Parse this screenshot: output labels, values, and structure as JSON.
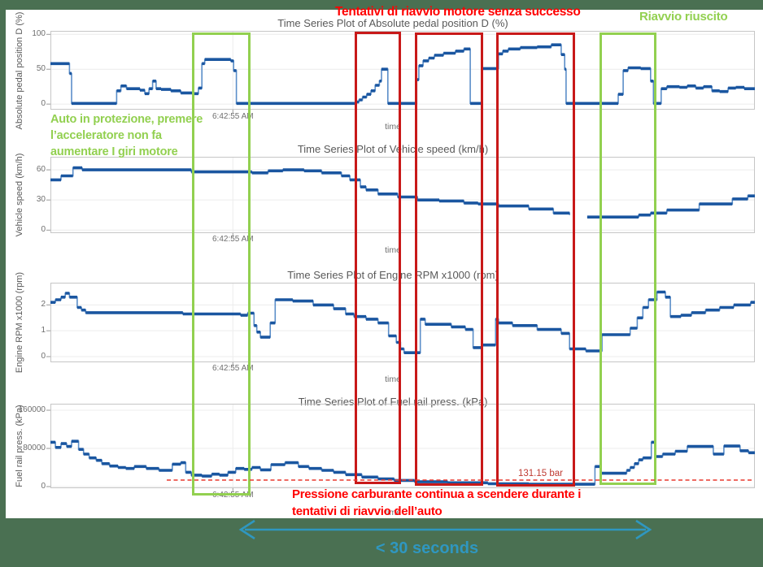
{
  "slide": {
    "background_color": "#4a7052",
    "panel_color": "#ffffff"
  },
  "annotations": {
    "top_red_label": "Tentativi di riavvio motore senza successo",
    "top_green_label": "Riavvio riuscito",
    "left_green_lines": [
      "Auto in protezione, premere",
      "l’acceleratore non  fa",
      "aumentare I giri motore"
    ],
    "bottom_red_lines": [
      "Pressione carburante continua a scendere durante i",
      "tentativi di riavvio dell’auto"
    ],
    "threshold_label": "131.15 bar",
    "duration_label": "< 30 seconds",
    "colors": {
      "red_text": "#ff0000",
      "green": "#92d050",
      "red_box": "#c81919",
      "threshold_text": "#bf3b32",
      "threshold_line": "#e8392f",
      "arrow_blue": "#2f97c0",
      "line_blue": "#1a56a0",
      "line_blue_light": "#5b8ec9"
    },
    "highlights": [
      {
        "name": "protection-phase",
        "color": "#92d050"
      },
      {
        "name": "restart-attempt-1",
        "color": "#c81919"
      },
      {
        "name": "restart-attempt-2",
        "color": "#c81919"
      },
      {
        "name": "restart-attempt-3",
        "color": "#c81919"
      },
      {
        "name": "successful-restart",
        "color": "#92d050"
      }
    ]
  },
  "chart_data": [
    {
      "type": "line",
      "title": "Time Series Plot of Absolute pedal position D (%)",
      "ylabel": "Absolute pedal position D (%)",
      "xlabel": "time",
      "x_axis": {
        "tick_label": "6:42:55 AM",
        "tick_position_pct": 25.9,
        "units": "percent_of_time_window"
      },
      "ylim": [
        -8,
        105
      ],
      "yticks": [
        0,
        50,
        100
      ],
      "grid": true,
      "series": [
        {
          "name": "Absolute pedal position D (%)",
          "draw": "step",
          "points": [
            [
              0,
              58
            ],
            [
              2.7,
              44
            ],
            [
              3,
              1
            ],
            [
              9.4,
              19
            ],
            [
              10,
              26
            ],
            [
              10.8,
              22
            ],
            [
              12.7,
              20
            ],
            [
              13.4,
              15
            ],
            [
              14,
              22
            ],
            [
              14.5,
              33
            ],
            [
              15,
              22
            ],
            [
              15.7,
              21
            ],
            [
              17.1,
              19
            ],
            [
              18.5,
              16
            ],
            [
              20.2,
              15
            ],
            [
              21,
              23
            ],
            [
              21.5,
              58
            ],
            [
              21.9,
              64
            ],
            [
              25.6,
              62
            ],
            [
              26,
              48
            ],
            [
              26.4,
              1
            ],
            [
              43.3,
              3
            ],
            [
              43.8,
              6
            ],
            [
              44.3,
              10
            ],
            [
              44.9,
              14
            ],
            [
              45.5,
              19
            ],
            [
              46.1,
              27
            ],
            [
              46.7,
              33
            ],
            [
              47,
              50
            ],
            [
              47.9,
              1
            ],
            [
              52,
              35
            ],
            [
              52.3,
              55
            ],
            [
              52.9,
              62
            ],
            [
              53.7,
              66
            ],
            [
              54.5,
              70
            ],
            [
              55.8,
              73
            ],
            [
              57.5,
              76
            ],
            [
              58.7,
              79
            ],
            [
              59.6,
              1
            ],
            [
              61.2,
              51
            ],
            [
              63.6,
              72
            ],
            [
              64.2,
              76
            ],
            [
              65,
              79
            ],
            [
              66.7,
              81
            ],
            [
              69.1,
              82
            ],
            [
              71.1,
              85
            ],
            [
              72.5,
              71
            ],
            [
              73,
              50
            ],
            [
              73.2,
              1
            ],
            [
              80.6,
              14
            ],
            [
              81.3,
              48
            ],
            [
              82,
              52
            ],
            [
              83.8,
              51
            ],
            [
              85.2,
              33
            ],
            [
              85.6,
              1
            ],
            [
              86.7,
              22
            ],
            [
              87.5,
              25
            ],
            [
              89.3,
              24
            ],
            [
              90.4,
              26
            ],
            [
              91.6,
              23
            ],
            [
              92.7,
              25
            ],
            [
              93.9,
              19
            ],
            [
              95,
              18
            ],
            [
              96.2,
              23
            ],
            [
              97.3,
              24
            ],
            [
              98.5,
              22
            ]
          ]
        }
      ]
    },
    {
      "type": "line",
      "title": "Time Series Plot of Vehicle speed (km/h)",
      "ylabel": "Vehicle speed (km/h)",
      "xlabel": "time",
      "x_axis": {
        "tick_label": "6:42:55 AM",
        "tick_position_pct": 25.9,
        "units": "percent_of_time_window"
      },
      "ylim": [
        -3,
        73
      ],
      "yticks": [
        0,
        30,
        60
      ],
      "grid": true,
      "series": [
        {
          "name": "Vehicle speed (km/h)",
          "draw": "step",
          "points": [
            [
              0,
              50
            ],
            [
              1.5,
              54
            ],
            [
              3.2,
              62
            ],
            [
              4.5,
              60
            ],
            [
              6,
              60
            ],
            [
              20,
              58
            ],
            [
              28.6,
              57
            ],
            [
              30.9,
              59
            ],
            [
              33,
              60
            ],
            [
              36,
              59
            ],
            [
              38.5,
              57
            ],
            [
              41.3,
              54
            ],
            [
              42.5,
              50
            ],
            [
              44,
              43
            ],
            [
              44.8,
              40
            ],
            [
              46.5,
              36
            ],
            [
              49.3,
              33
            ],
            [
              52.1,
              30
            ],
            [
              55.2,
              29
            ],
            [
              58.7,
              27
            ],
            [
              60.7,
              26
            ],
            [
              63.6,
              24
            ],
            [
              67.9,
              21
            ],
            [
              71.4,
              17
            ],
            [
              73.7,
              15
            ],
            [
              74.6,
              null
            ],
            [
              76.2,
              13
            ],
            [
              81.8,
              13
            ],
            [
              83.5,
              15
            ],
            [
              85.2,
              17
            ],
            [
              87.5,
              20
            ],
            [
              92.1,
              26
            ],
            [
              96.8,
              31
            ],
            [
              99,
              34
            ]
          ]
        }
      ]
    },
    {
      "type": "line",
      "title": "Time Series Plot of Engine RPM x1000 (rpm)",
      "ylabel": "Engine RPM x1000 (rpm)",
      "xlabel": "time",
      "x_axis": {
        "tick_label": "6:42:55 AM",
        "tick_position_pct": 25.9,
        "units": "percent_of_time_window"
      },
      "ylim": [
        -0.22,
        2.86
      ],
      "yticks": [
        0,
        1,
        2
      ],
      "grid": true,
      "series": [
        {
          "name": "Engine RPM x1000 (rpm)",
          "draw": "step",
          "points": [
            [
              0,
              2.1
            ],
            [
              0.7,
              2.2
            ],
            [
              1.5,
              2.3
            ],
            [
              2.1,
              2.45
            ],
            [
              2.7,
              2.3
            ],
            [
              3.8,
              1.9
            ],
            [
              4.4,
              1.8
            ],
            [
              5,
              1.7
            ],
            [
              18.8,
              1.65
            ],
            [
              27,
              1.6
            ],
            [
              28,
              1.68
            ],
            [
              28.9,
              1.2
            ],
            [
              29.3,
              0.95
            ],
            [
              29.8,
              0.75
            ],
            [
              31.2,
              1.3
            ],
            [
              31.9,
              2.2
            ],
            [
              34.4,
              2.15
            ],
            [
              37.3,
              2.0
            ],
            [
              40.2,
              1.85
            ],
            [
              41.9,
              1.65
            ],
            [
              43.1,
              1.55
            ],
            [
              44.8,
              1.45
            ],
            [
              46.5,
              1.3
            ],
            [
              48,
              0.8
            ],
            [
              49.1,
              0.55
            ],
            [
              49.7,
              0.3
            ],
            [
              50.2,
              0.15
            ],
            [
              52.5,
              1.45
            ],
            [
              53.2,
              1.25
            ],
            [
              56.9,
              1.15
            ],
            [
              58.9,
              1.05
            ],
            [
              60,
              0.35
            ],
            [
              61.3,
              0.45
            ],
            [
              63.2,
              1.45
            ],
            [
              63.6,
              1.3
            ],
            [
              65.6,
              1.2
            ],
            [
              69.1,
              1.05
            ],
            [
              72.5,
              0.9
            ],
            [
              73.7,
              0.3
            ],
            [
              76,
              0.22
            ],
            [
              78.3,
              0.85
            ],
            [
              82.3,
              1.1
            ],
            [
              83.3,
              1.5
            ],
            [
              84.1,
              1.9
            ],
            [
              84.9,
              2.2
            ],
            [
              86.1,
              2.5
            ],
            [
              87.3,
              2.3
            ],
            [
              88,
              1.55
            ],
            [
              89.5,
              1.6
            ],
            [
              91,
              1.7
            ],
            [
              93,
              1.8
            ],
            [
              95,
              1.9
            ],
            [
              97,
              2.0
            ],
            [
              99.4,
              2.1
            ]
          ]
        }
      ]
    },
    {
      "type": "line",
      "title": "Time Series Plot of Fuel rail press. (kPa)",
      "ylabel": "Fuel rail press. (kPa)",
      "xlabel": "time",
      "x_axis": {
        "tick_label": "6:42:55 AM",
        "tick_position_pct": 25.9,
        "units": "percent_of_time_window"
      },
      "ylim": [
        -3400,
        173600
      ],
      "yticks": [
        0,
        80000,
        160000
      ],
      "grid": true,
      "reference_line": {
        "value": 13115,
        "label": "131.15 bar",
        "unit": "kPa"
      },
      "series": [
        {
          "name": "Fuel rail press. (kPa)",
          "draw": "step",
          "points": [
            [
              0,
              93000
            ],
            [
              0.7,
              82000
            ],
            [
              1.5,
              90000
            ],
            [
              2.3,
              84000
            ],
            [
              3,
              95000
            ],
            [
              4,
              78000
            ],
            [
              4.7,
              68000
            ],
            [
              5.5,
              60000
            ],
            [
              6.5,
              55000
            ],
            [
              7.3,
              48000
            ],
            [
              8.4,
              43000
            ],
            [
              9.6,
              40000
            ],
            [
              10.7,
              38000
            ],
            [
              11.9,
              42000
            ],
            [
              13.6,
              38000
            ],
            [
              15.4,
              34000
            ],
            [
              17.3,
              47000
            ],
            [
              18.5,
              50000
            ],
            [
              19.2,
              30000
            ],
            [
              20,
              24000
            ],
            [
              21.5,
              22000
            ],
            [
              22.9,
              26000
            ],
            [
              24,
              24000
            ],
            [
              25.2,
              30000
            ],
            [
              26.3,
              38000
            ],
            [
              27.5,
              36000
            ],
            [
              28.6,
              40000
            ],
            [
              29.8,
              35000
            ],
            [
              31.3,
              46000
            ],
            [
              33.3,
              50000
            ],
            [
              35.2,
              42000
            ],
            [
              36.7,
              38000
            ],
            [
              38.5,
              34000
            ],
            [
              40.2,
              30000
            ],
            [
              41.9,
              25000
            ],
            [
              44.2,
              20000
            ],
            [
              46.5,
              16000
            ],
            [
              48.8,
              13000
            ],
            [
              51.7,
              10000
            ],
            [
              56.4,
              8000
            ],
            [
              62.1,
              6000
            ],
            [
              67.9,
              5000
            ],
            [
              77.3,
              42000
            ],
            [
              78.1,
              28000
            ],
            [
              81.8,
              34000
            ],
            [
              82.3,
              40000
            ],
            [
              82.9,
              48000
            ],
            [
              83.5,
              56000
            ],
            [
              84.1,
              60000
            ],
            [
              85.3,
              93000
            ],
            [
              85.8,
              63000
            ],
            [
              86.9,
              68000
            ],
            [
              88.7,
              74000
            ],
            [
              90.4,
              84000
            ],
            [
              94.1,
              68000
            ],
            [
              95.6,
              85000
            ],
            [
              97.9,
              75000
            ],
            [
              99.1,
              71000
            ]
          ]
        }
      ]
    }
  ]
}
